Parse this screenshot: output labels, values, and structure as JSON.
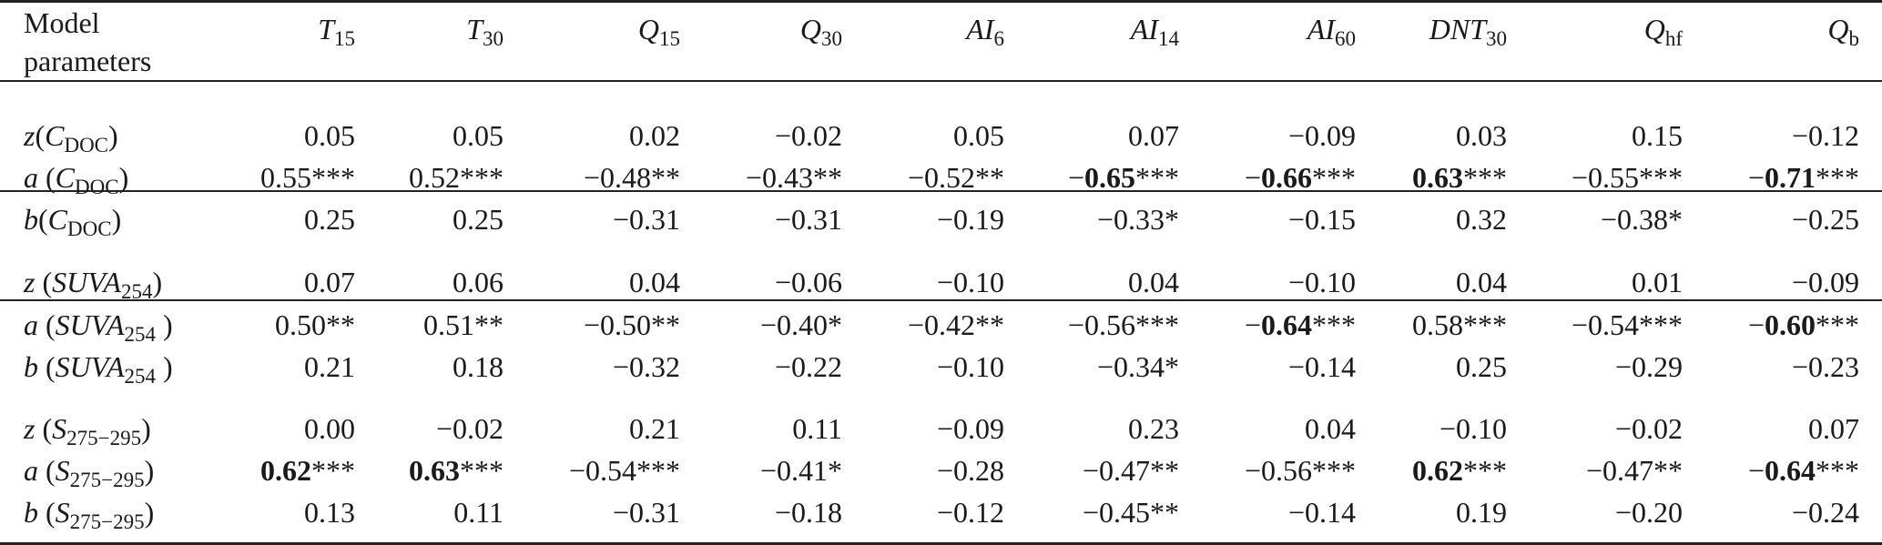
{
  "header": {
    "model_parameters_line1": "Model",
    "model_parameters_line2": "parameters",
    "columns": [
      "T15",
      "T30",
      "Q15",
      "Q30",
      "AI6",
      "AI14",
      "AI60",
      "DNT30",
      "Qhf",
      "Qb"
    ]
  },
  "groups": [
    {
      "variable": "CDOC",
      "rows": [
        {
          "param": "z",
          "cells": [
            {
              "v": "0.05",
              "bold": false,
              "stars": ""
            },
            {
              "v": "0.05",
              "bold": false,
              "stars": ""
            },
            {
              "v": "0.02",
              "bold": false,
              "stars": ""
            },
            {
              "v": "−0.02",
              "bold": false,
              "stars": ""
            },
            {
              "v": "0.05",
              "bold": false,
              "stars": ""
            },
            {
              "v": "0.07",
              "bold": false,
              "stars": ""
            },
            {
              "v": "−0.09",
              "bold": false,
              "stars": ""
            },
            {
              "v": "0.03",
              "bold": false,
              "stars": ""
            },
            {
              "v": "0.15",
              "bold": false,
              "stars": ""
            },
            {
              "v": "−0.12",
              "bold": false,
              "stars": ""
            }
          ]
        },
        {
          "param": "a",
          "cells": [
            {
              "v": "0.55",
              "bold": false,
              "stars": "***"
            },
            {
              "v": "0.52",
              "bold": false,
              "stars": "***"
            },
            {
              "v": "−0.48",
              "bold": false,
              "stars": "**"
            },
            {
              "v": "−0.43",
              "bold": false,
              "stars": "**"
            },
            {
              "v": "−0.52",
              "bold": false,
              "stars": "**"
            },
            {
              "v": "−0.65",
              "bold": true,
              "stars": "***"
            },
            {
              "v": "−0.66",
              "bold": true,
              "stars": "***"
            },
            {
              "v": "0.63",
              "bold": true,
              "stars": "***"
            },
            {
              "v": "−0.55",
              "bold": false,
              "stars": "***"
            },
            {
              "v": "−0.71",
              "bold": true,
              "stars": "***"
            }
          ]
        },
        {
          "param": "b",
          "cells": [
            {
              "v": "0.25",
              "bold": false,
              "stars": ""
            },
            {
              "v": "0.25",
              "bold": false,
              "stars": ""
            },
            {
              "v": "−0.31",
              "bold": false,
              "stars": ""
            },
            {
              "v": "−0.31",
              "bold": false,
              "stars": ""
            },
            {
              "v": "−0.19",
              "bold": false,
              "stars": ""
            },
            {
              "v": "−0.33",
              "bold": false,
              "stars": "*"
            },
            {
              "v": "−0.15",
              "bold": false,
              "stars": ""
            },
            {
              "v": "0.32",
              "bold": false,
              "stars": ""
            },
            {
              "v": "−0.38",
              "bold": false,
              "stars": "*"
            },
            {
              "v": "−0.25",
              "bold": false,
              "stars": ""
            }
          ]
        }
      ]
    },
    {
      "variable": "SUVA254",
      "rows": [
        {
          "param": "z",
          "cells": [
            {
              "v": "0.07",
              "bold": false,
              "stars": ""
            },
            {
              "v": "0.06",
              "bold": false,
              "stars": ""
            },
            {
              "v": "0.04",
              "bold": false,
              "stars": ""
            },
            {
              "v": "−0.06",
              "bold": false,
              "stars": ""
            },
            {
              "v": "−0.10",
              "bold": false,
              "stars": ""
            },
            {
              "v": "0.04",
              "bold": false,
              "stars": ""
            },
            {
              "v": "−0.10",
              "bold": false,
              "stars": ""
            },
            {
              "v": "0.04",
              "bold": false,
              "stars": ""
            },
            {
              "v": "0.01",
              "bold": false,
              "stars": ""
            },
            {
              "v": "−0.09",
              "bold": false,
              "stars": ""
            }
          ]
        },
        {
          "param": "a",
          "cells": [
            {
              "v": "0.50",
              "bold": false,
              "stars": "**"
            },
            {
              "v": "0.51",
              "bold": false,
              "stars": "**"
            },
            {
              "v": "−0.50",
              "bold": false,
              "stars": "**"
            },
            {
              "v": "−0.40",
              "bold": false,
              "stars": "*"
            },
            {
              "v": "−0.42",
              "bold": false,
              "stars": "**"
            },
            {
              "v": "−0.56",
              "bold": false,
              "stars": "***"
            },
            {
              "v": "−0.64",
              "bold": true,
              "stars": "***"
            },
            {
              "v": "0.58",
              "bold": false,
              "stars": "***"
            },
            {
              "v": "−0.54",
              "bold": false,
              "stars": "***"
            },
            {
              "v": "−0.60",
              "bold": true,
              "stars": "***"
            }
          ]
        },
        {
          "param": "b",
          "cells": [
            {
              "v": "0.21",
              "bold": false,
              "stars": ""
            },
            {
              "v": "0.18",
              "bold": false,
              "stars": ""
            },
            {
              "v": "−0.32",
              "bold": false,
              "stars": ""
            },
            {
              "v": "−0.22",
              "bold": false,
              "stars": ""
            },
            {
              "v": "−0.10",
              "bold": false,
              "stars": ""
            },
            {
              "v": "−0.34",
              "bold": false,
              "stars": "*"
            },
            {
              "v": "−0.14",
              "bold": false,
              "stars": ""
            },
            {
              "v": "0.25",
              "bold": false,
              "stars": ""
            },
            {
              "v": "−0.29",
              "bold": false,
              "stars": ""
            },
            {
              "v": "−0.23",
              "bold": false,
              "stars": ""
            }
          ]
        }
      ]
    },
    {
      "variable": "S275−295",
      "rows": [
        {
          "param": "z",
          "cells": [
            {
              "v": "0.00",
              "bold": false,
              "stars": ""
            },
            {
              "v": "−0.02",
              "bold": false,
              "stars": ""
            },
            {
              "v": "0.21",
              "bold": false,
              "stars": ""
            },
            {
              "v": "0.11",
              "bold": false,
              "stars": ""
            },
            {
              "v": "−0.09",
              "bold": false,
              "stars": ""
            },
            {
              "v": "0.23",
              "bold": false,
              "stars": ""
            },
            {
              "v": "0.04",
              "bold": false,
              "stars": ""
            },
            {
              "v": "−0.10",
              "bold": false,
              "stars": ""
            },
            {
              "v": "−0.02",
              "bold": false,
              "stars": ""
            },
            {
              "v": "0.07",
              "bold": false,
              "stars": ""
            }
          ]
        },
        {
          "param": "a",
          "cells": [
            {
              "v": "0.62",
              "bold": true,
              "stars": "***"
            },
            {
              "v": "0.63",
              "bold": true,
              "stars": "***"
            },
            {
              "v": "−0.54",
              "bold": false,
              "stars": "***"
            },
            {
              "v": "−0.41",
              "bold": false,
              "stars": "*"
            },
            {
              "v": "−0.28",
              "bold": false,
              "stars": ""
            },
            {
              "v": "−0.47",
              "bold": false,
              "stars": "**"
            },
            {
              "v": "−0.56",
              "bold": false,
              "stars": "***"
            },
            {
              "v": "0.62",
              "bold": true,
              "stars": "***"
            },
            {
              "v": "−0.47",
              "bold": false,
              "stars": "**"
            },
            {
              "v": "−0.64",
              "bold": true,
              "stars": "***"
            }
          ]
        },
        {
          "param": "b",
          "cells": [
            {
              "v": "0.13",
              "bold": false,
              "stars": ""
            },
            {
              "v": "0.11",
              "bold": false,
              "stars": ""
            },
            {
              "v": "−0.31",
              "bold": false,
              "stars": ""
            },
            {
              "v": "−0.18",
              "bold": false,
              "stars": ""
            },
            {
              "v": "−0.12",
              "bold": false,
              "stars": ""
            },
            {
              "v": "−0.45",
              "bold": false,
              "stars": "**"
            },
            {
              "v": "−0.14",
              "bold": false,
              "stars": ""
            },
            {
              "v": "0.19",
              "bold": false,
              "stars": ""
            },
            {
              "v": "−0.20",
              "bold": false,
              "stars": ""
            },
            {
              "v": "−0.24",
              "bold": false,
              "stars": ""
            }
          ]
        }
      ]
    }
  ]
}
